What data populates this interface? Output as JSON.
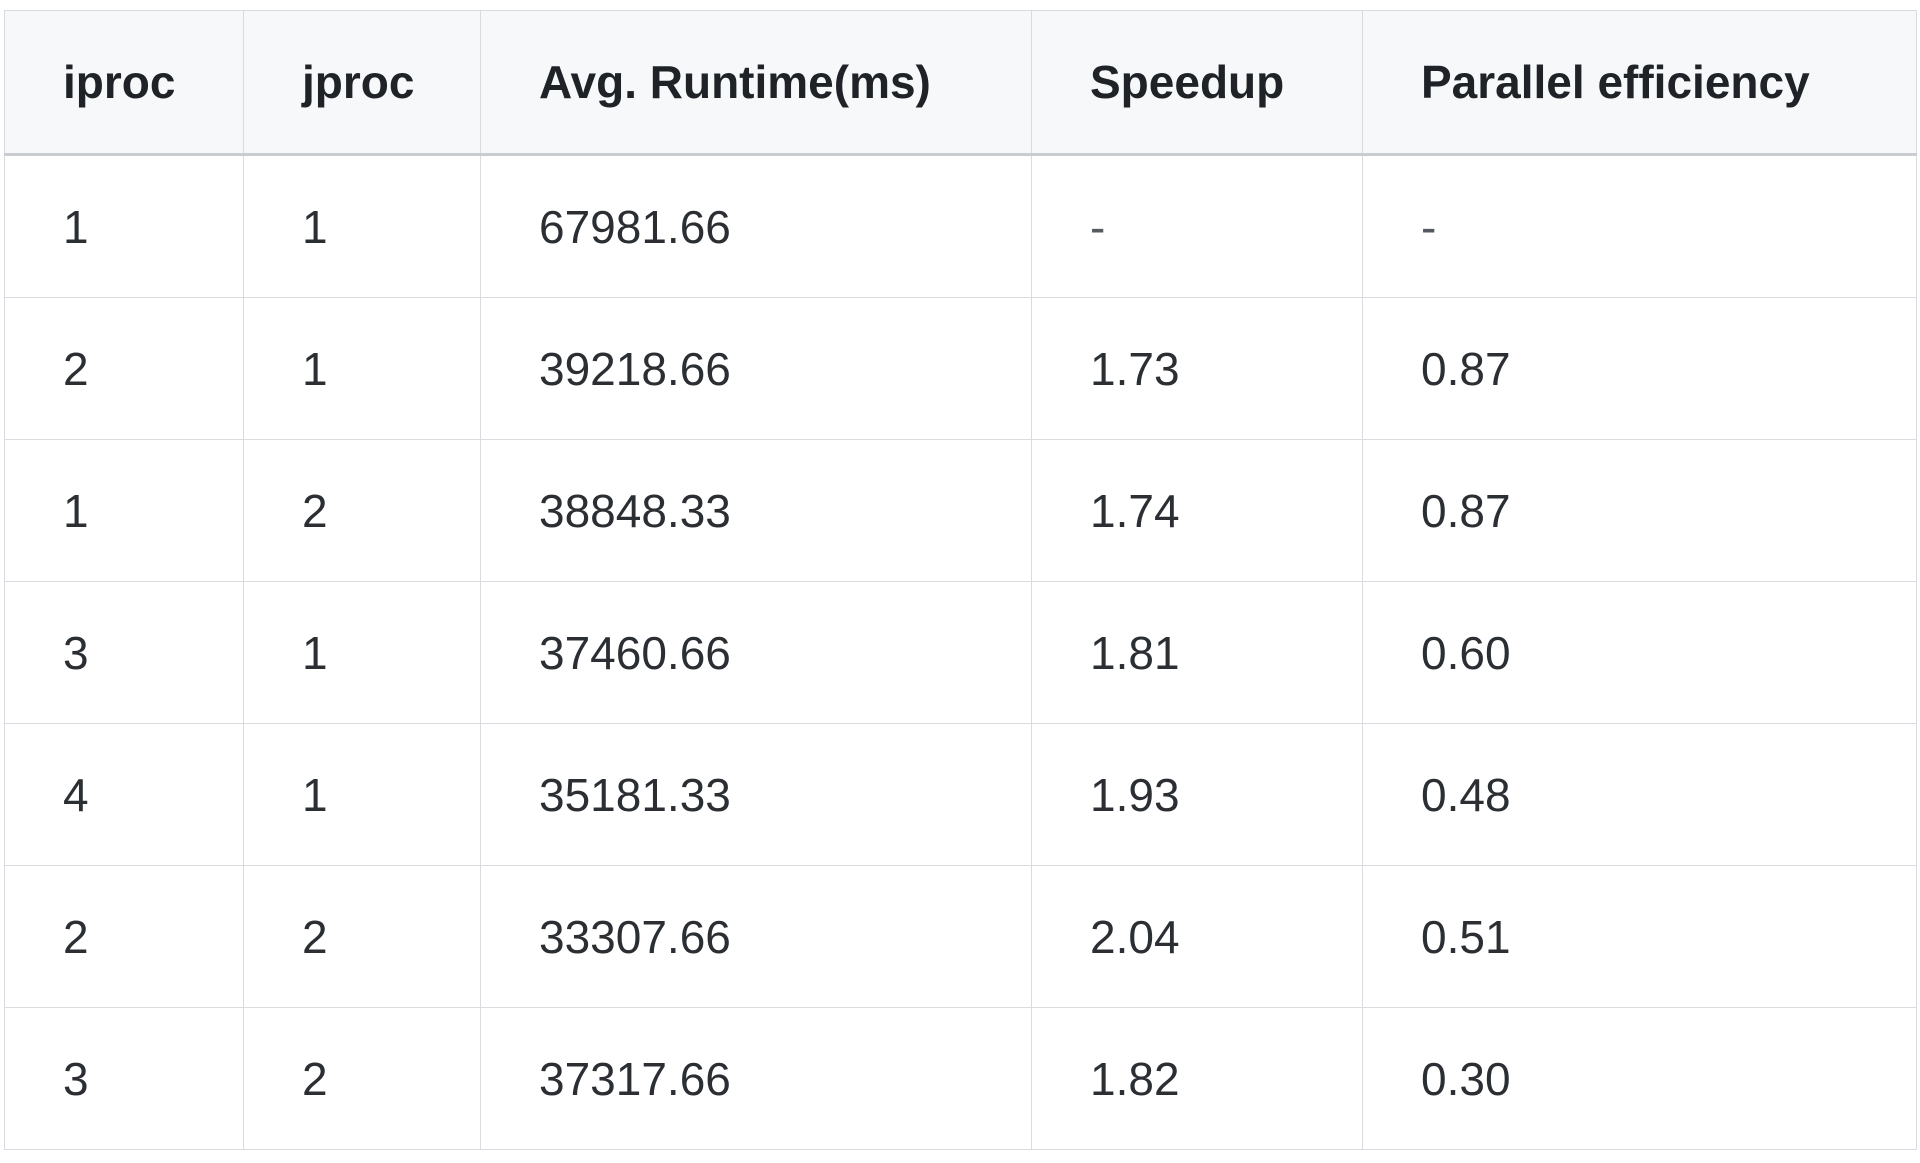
{
  "table": {
    "headers": [
      "iproc",
      "jproc",
      "Avg. Runtime(ms)",
      "Speedup",
      "Parallel efficiency"
    ],
    "rows": [
      [
        "1",
        "1",
        "67981.66",
        "-",
        "-"
      ],
      [
        "2",
        "1",
        "39218.66",
        "1.73",
        "0.87"
      ],
      [
        "1",
        "2",
        "38848.33",
        "1.74",
        "0.87"
      ],
      [
        "3",
        "1",
        "37460.66",
        "1.81",
        "0.60"
      ],
      [
        "4",
        "1",
        "35181.33",
        "1.93",
        "0.48"
      ],
      [
        "2",
        "2",
        "33307.66",
        "2.04",
        "0.51"
      ],
      [
        "3",
        "2",
        "37317.66",
        "1.82",
        "0.30"
      ]
    ]
  }
}
